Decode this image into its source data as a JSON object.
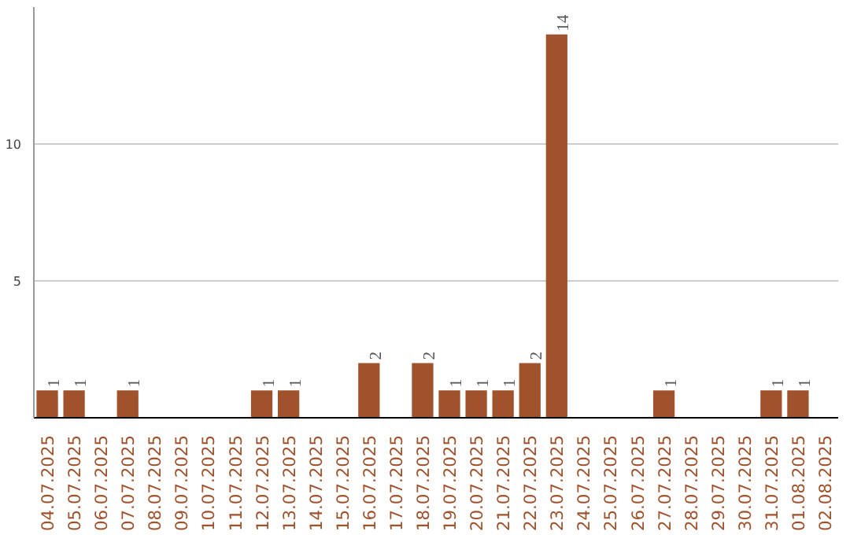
{
  "chart_data": {
    "type": "bar",
    "categories": [
      "04.07.2025",
      "05.07.2025",
      "06.07.2025",
      "07.07.2025",
      "08.07.2025",
      "09.07.2025",
      "10.07.2025",
      "11.07.2025",
      "12.07.2025",
      "13.07.2025",
      "14.07.2025",
      "15.07.2025",
      "16.07.2025",
      "17.07.2025",
      "18.07.2025",
      "19.07.2025",
      "20.07.2025",
      "21.07.2025",
      "22.07.2025",
      "23.07.2025",
      "24.07.2025",
      "25.07.2025",
      "26.07.2025",
      "27.07.2025",
      "28.07.2025",
      "29.07.2025",
      "30.07.2025",
      "31.07.2025",
      "01.08.2025",
      "02.08.2025"
    ],
    "values": [
      1,
      1,
      0,
      1,
      0,
      0,
      0,
      0,
      1,
      1,
      0,
      0,
      2,
      0,
      2,
      1,
      1,
      1,
      2,
      14,
      0,
      0,
      0,
      1,
      0,
      0,
      0,
      1,
      1,
      0
    ],
    "value_labels": [
      "1",
      "1",
      null,
      "1",
      null,
      null,
      null,
      null,
      "1",
      "1",
      null,
      null,
      "2",
      null,
      "2",
      "1",
      "1",
      "1",
      "2",
      "14",
      null,
      null,
      null,
      "1",
      null,
      null,
      null,
      "1",
      "1",
      null
    ],
    "color": "#a0522d",
    "ylim": [
      0,
      15
    ],
    "yticks": [
      5,
      10
    ],
    "grid": "y"
  }
}
